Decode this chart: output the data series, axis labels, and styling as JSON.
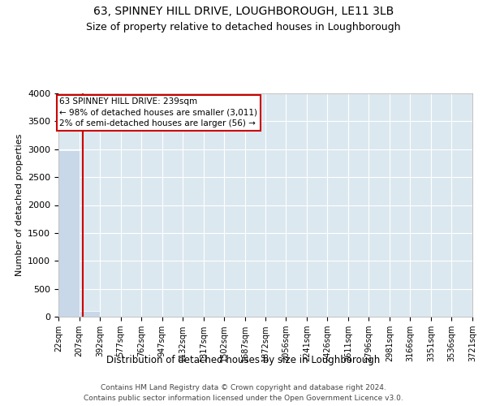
{
  "title": "63, SPINNEY HILL DRIVE, LOUGHBOROUGH, LE11 3LB",
  "subtitle": "Size of property relative to detached houses in Loughborough",
  "xlabel": "Distribution of detached houses by size in Loughborough",
  "ylabel": "Number of detached properties",
  "bar_edges": [
    22,
    207,
    392,
    577,
    762,
    947,
    1132,
    1317,
    1502,
    1687,
    1872,
    2056,
    2241,
    2426,
    2611,
    2796,
    2981,
    3166,
    3351,
    3536,
    3721
  ],
  "bar_heights": [
    2980,
    100,
    0,
    0,
    0,
    0,
    0,
    0,
    0,
    0,
    0,
    0,
    0,
    0,
    0,
    0,
    0,
    0,
    0,
    0
  ],
  "bar_color": "#c8d8e8",
  "property_size": 239,
  "property_line_color": "#cc0000",
  "ylim": [
    0,
    4000
  ],
  "yticks": [
    0,
    500,
    1000,
    1500,
    2000,
    2500,
    3000,
    3500,
    4000
  ],
  "annotation_text": "63 SPINNEY HILL DRIVE: 239sqm\n← 98% of detached houses are smaller (3,011)\n2% of semi-detached houses are larger (56) →",
  "annotation_box_color": "#ffffff",
  "annotation_border_color": "#cc0000",
  "footer_line1": "Contains HM Land Registry data © Crown copyright and database right 2024.",
  "footer_line2": "Contains public sector information licensed under the Open Government Licence v3.0.",
  "plot_bg_color": "#dce8f0",
  "title_fontsize": 10,
  "subtitle_fontsize": 9,
  "tick_label_fontsize": 7,
  "ylabel_fontsize": 8,
  "xlabel_fontsize": 8.5,
  "footer_fontsize": 6.5,
  "annotation_fontsize": 7.5
}
